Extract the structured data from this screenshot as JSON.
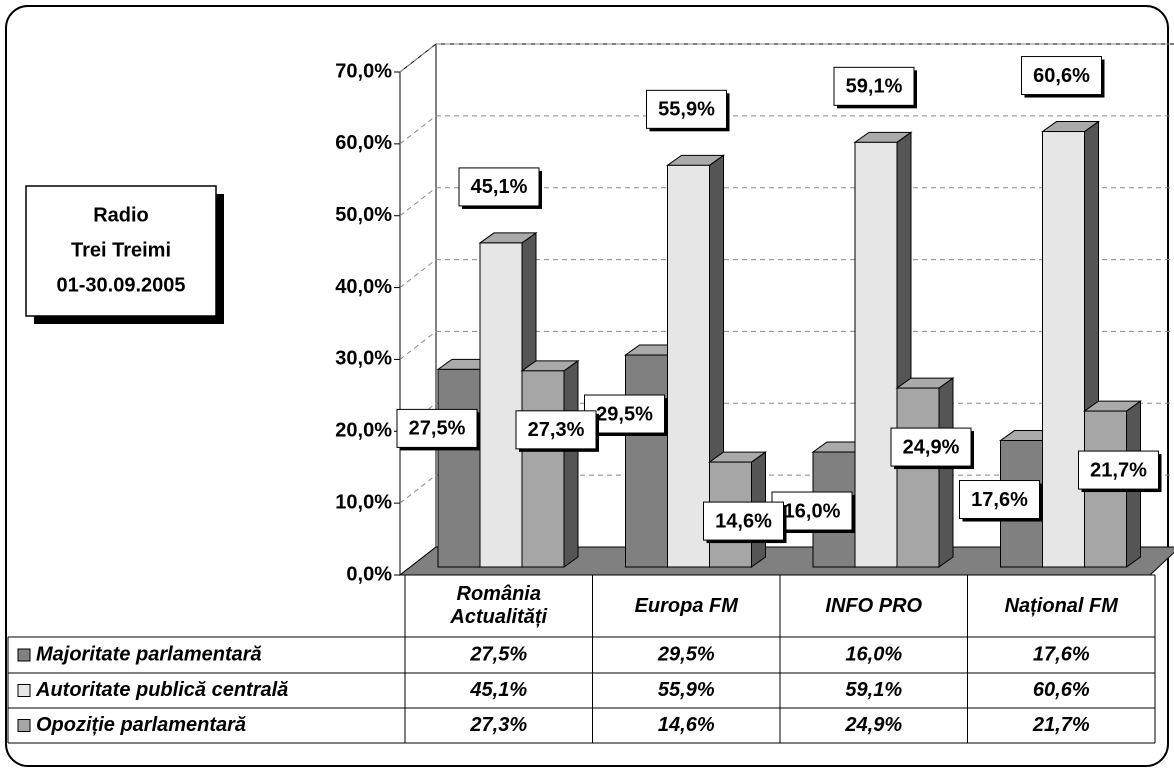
{
  "chart_data": {
    "type": "bar3d",
    "title": [
      "Radio",
      "Trei Treimi",
      "01-30.09.2005"
    ],
    "categories": [
      "România Actualități",
      "Europa FM",
      "INFO PRO",
      "Național FM"
    ],
    "series": [
      {
        "name": "Majoritate parlamentară",
        "color": "#808080",
        "values": [
          27.5,
          29.5,
          16.0,
          17.6
        ],
        "value_labels": [
          "27,5%",
          "29,5%",
          "16,0%",
          "17,6%"
        ]
      },
      {
        "name": "Autoritate publică centrală",
        "color": "#e6e6e6",
        "values": [
          45.1,
          55.9,
          59.1,
          60.6
        ],
        "value_labels": [
          "45,1%",
          "55,9%",
          "59,1%",
          "60,6%"
        ]
      },
      {
        "name": "Opoziție parlamentară",
        "color": "#a6a6a6",
        "values": [
          27.3,
          14.6,
          24.9,
          21.7
        ],
        "value_labels": [
          "27,3%",
          "14,6%",
          "24,9%",
          "21,7%"
        ]
      }
    ],
    "ylim": [
      0,
      70
    ],
    "yticks": [
      {
        "value": 0,
        "label": "0,0%"
      },
      {
        "value": 10,
        "label": "10,0%"
      },
      {
        "value": 20,
        "label": "20,0%"
      },
      {
        "value": 30,
        "label": "30,0%"
      },
      {
        "value": 40,
        "label": "40,0%"
      },
      {
        "value": 50,
        "label": "50,0%"
      },
      {
        "value": 60,
        "label": "60,0%"
      },
      {
        "value": 70,
        "label": "70,0%"
      }
    ],
    "grid": true
  }
}
